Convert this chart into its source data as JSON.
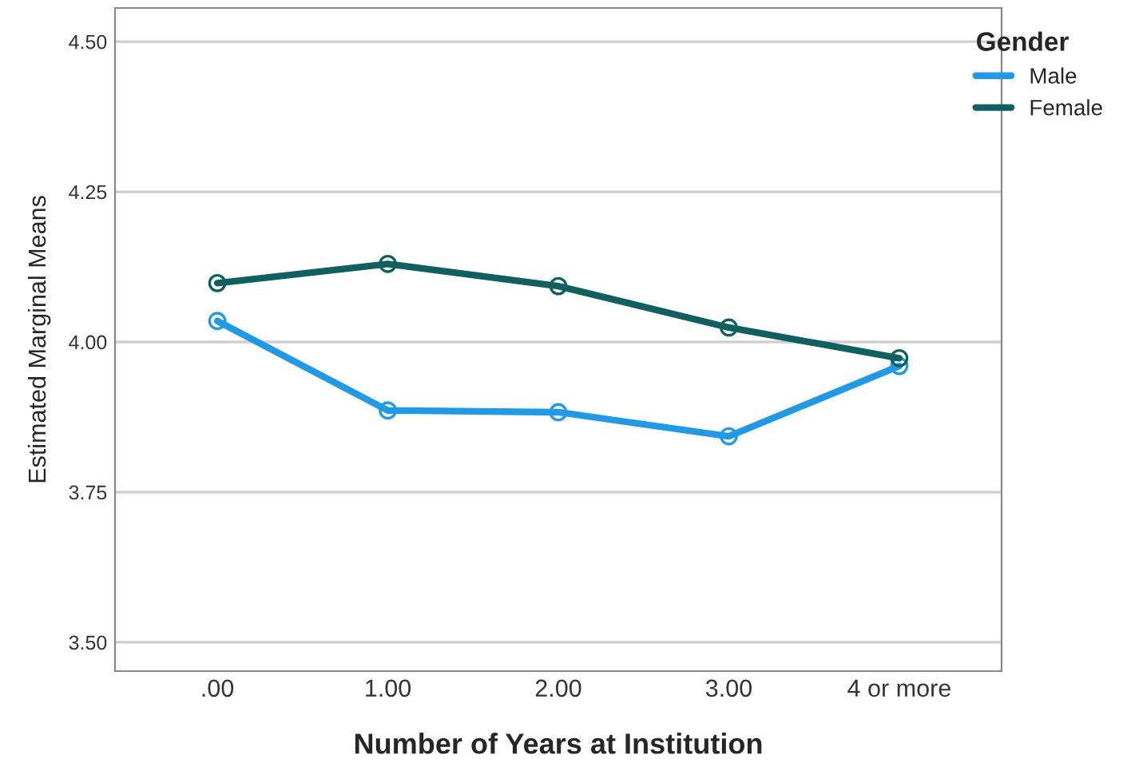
{
  "chart_data": {
    "type": "line",
    "xlabel": "Number of Years at Institution",
    "ylabel": "Estimated Marginal Means",
    "legend_title": "Gender",
    "categories": [
      ".00",
      "1.00",
      "2.00",
      "3.00",
      "4 or more"
    ],
    "series": [
      {
        "name": "Male",
        "color": "#1f9ae8",
        "values": [
          4.035,
          3.886,
          3.883,
          3.843,
          3.96
        ]
      },
      {
        "name": "Female",
        "color": "#0f6160",
        "values": [
          4.098,
          4.13,
          4.093,
          4.024,
          3.973
        ]
      }
    ],
    "ylim": [
      3.452,
      4.556
    ],
    "yticks": [
      {
        "value": 3.5,
        "label": "3.50"
      },
      {
        "value": 3.75,
        "label": "3.75"
      },
      {
        "value": 4.0,
        "label": "4.00"
      },
      {
        "value": 4.25,
        "label": "4.25"
      },
      {
        "value": 4.5,
        "label": "4.50"
      }
    ],
    "grid": "y",
    "legend": "top right",
    "marker": "circle"
  }
}
